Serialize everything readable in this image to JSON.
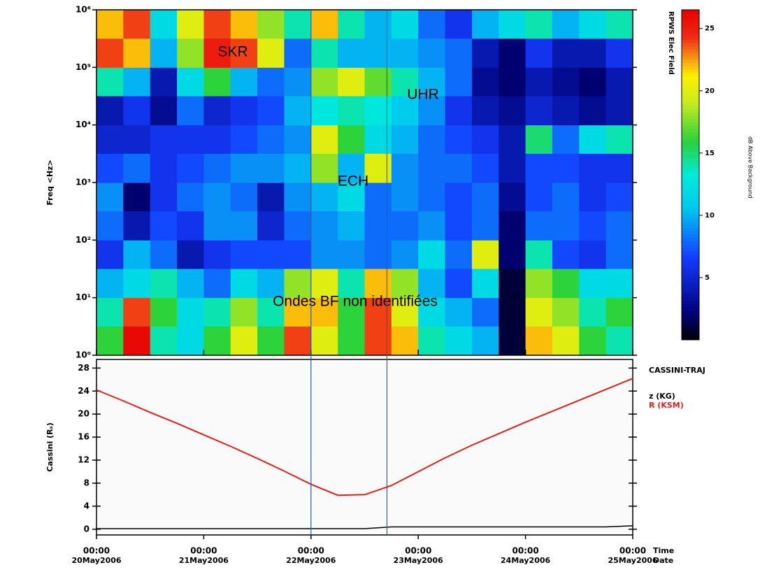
{
  "chart_data": [
    {
      "type": "spectrogram",
      "ylabel": "Freq <Hz>",
      "xlim": [
        0,
        120
      ],
      "ylim": [
        1,
        1000000
      ],
      "log_y": true,
      "yticks": [
        {
          "value": 1,
          "label": "10⁰"
        },
        {
          "value": 10,
          "label": "10¹"
        },
        {
          "value": 100,
          "label": "10²"
        },
        {
          "value": 1000,
          "label": "10³"
        },
        {
          "value": 10000,
          "label": "10⁴"
        },
        {
          "value": 100000,
          "label": "10⁵"
        },
        {
          "value": 1000000,
          "label": "10⁶"
        }
      ],
      "xbins": [
        0,
        6,
        12,
        18,
        24,
        30,
        36,
        42,
        48,
        54,
        60,
        66,
        72,
        78,
        84,
        90,
        96,
        102,
        108,
        114,
        120
      ],
      "ybins": [
        1,
        3.2,
        10,
        32,
        100,
        320,
        1000,
        3200,
        10000,
        32000,
        100000,
        320000,
        1000000
      ],
      "z": [
        [
          16,
          26,
          14,
          12,
          16,
          20,
          16,
          24,
          20,
          16,
          24,
          22,
          14,
          12,
          10,
          1,
          22,
          20,
          16,
          14
        ],
        [
          14,
          24,
          16,
          12,
          14,
          18,
          14,
          22,
          22,
          16,
          24,
          20,
          12,
          10,
          8,
          1,
          20,
          18,
          14,
          16
        ],
        [
          10,
          12,
          14,
          10,
          8,
          12,
          10,
          18,
          20,
          14,
          22,
          18,
          10,
          7,
          12,
          1,
          18,
          16,
          12,
          12
        ],
        [
          6,
          10,
          8,
          4,
          6,
          7,
          7,
          7,
          9,
          9,
          8,
          9,
          12,
          8,
          20,
          2,
          14,
          7,
          6,
          8
        ],
        [
          8,
          4,
          7,
          6,
          9,
          9,
          5,
          8,
          9,
          10,
          8,
          8,
          9,
          7,
          8,
          2,
          8,
          8,
          7,
          8
        ],
        [
          9,
          2,
          6,
          8,
          9,
          8,
          4,
          9,
          10,
          12,
          8,
          9,
          8,
          7,
          8,
          3,
          7,
          8,
          6,
          7
        ],
        [
          7,
          8,
          6,
          7,
          8,
          9,
          9,
          10,
          18,
          10,
          20,
          9,
          8,
          8,
          7,
          4,
          7,
          7,
          6,
          6
        ],
        [
          5,
          5,
          6,
          6,
          6,
          7,
          8,
          9,
          20,
          16,
          12,
          10,
          8,
          7,
          6,
          4,
          15,
          8,
          12,
          14
        ],
        [
          4,
          6,
          3,
          8,
          5,
          6,
          7,
          10,
          13,
          14,
          13,
          11,
          9,
          6,
          4,
          3,
          5,
          4,
          3,
          4
        ],
        [
          14,
          10,
          4,
          12,
          16,
          10,
          8,
          9,
          18,
          20,
          17,
          14,
          10,
          8,
          3,
          2,
          4,
          3,
          2,
          4
        ],
        [
          24,
          22,
          10,
          18,
          25,
          24,
          20,
          8,
          14,
          10,
          10,
          10,
          9,
          8,
          4,
          2,
          6,
          4,
          4,
          6
        ],
        [
          22,
          24,
          12,
          20,
          24,
          22,
          18,
          14,
          22,
          14,
          10,
          12,
          8,
          6,
          10,
          12,
          14,
          10,
          12,
          14
        ]
      ],
      "annotations": [
        "SKR",
        "UHR",
        "ECH",
        "Ondes BF non identifiées"
      ],
      "colorbar": {
        "title": "RPWS Elec Field",
        "label": "dB Above Background",
        "lim": [
          0,
          26.5
        ],
        "ticks": [
          5,
          10,
          15,
          20,
          25
        ]
      }
    },
    {
      "type": "line",
      "title": "CASSINI-TRAJ",
      "ylabel": "Cassini (Rₛ)",
      "xlabel": "Time",
      "xlabel2": "Date",
      "xlim": [
        0,
        120
      ],
      "ylim": [
        -1,
        29.5
      ],
      "yticks": [
        0,
        4,
        8,
        12,
        16,
        20,
        24,
        28
      ],
      "xticks": [
        {
          "value": 0,
          "label": "00:00"
        },
        {
          "value": 24,
          "label": "00:00"
        },
        {
          "value": 48,
          "label": "00:00"
        },
        {
          "value": 72,
          "label": "00:00"
        },
        {
          "value": 96,
          "label": "00:00"
        },
        {
          "value": 120,
          "label": "00:00"
        }
      ],
      "xdates": [
        "20May2006",
        "21May2006",
        "22May2006",
        "23May2006",
        "24May2006",
        "25May2006"
      ],
      "x": [
        0,
        6,
        12,
        18,
        24,
        30,
        36,
        42,
        48,
        54,
        60,
        66,
        72,
        78,
        84,
        90,
        96,
        102,
        108,
        114,
        120
      ],
      "series": [
        {
          "name": "z (KG)",
          "color": "#000000",
          "values": [
            0.1,
            0.1,
            0.1,
            0.1,
            0.1,
            0.1,
            0.1,
            0.1,
            0.1,
            0.1,
            0.1,
            0.4,
            0.4,
            0.4,
            0.4,
            0.4,
            0.4,
            0.4,
            0.4,
            0.4,
            0.6
          ]
        },
        {
          "name": "R (KSM)",
          "color": "#e8201a",
          "values": [
            24.2,
            22.3,
            20.3,
            18.4,
            16.4,
            14.4,
            12.3,
            10.1,
            7.8,
            5.9,
            6.0,
            7.6,
            10.0,
            12.4,
            14.6,
            16.6,
            18.6,
            20.5,
            22.4,
            24.3,
            26.2
          ]
        }
      ],
      "markers": [
        48,
        65
      ],
      "marker_color": "#2a5fa8"
    }
  ]
}
